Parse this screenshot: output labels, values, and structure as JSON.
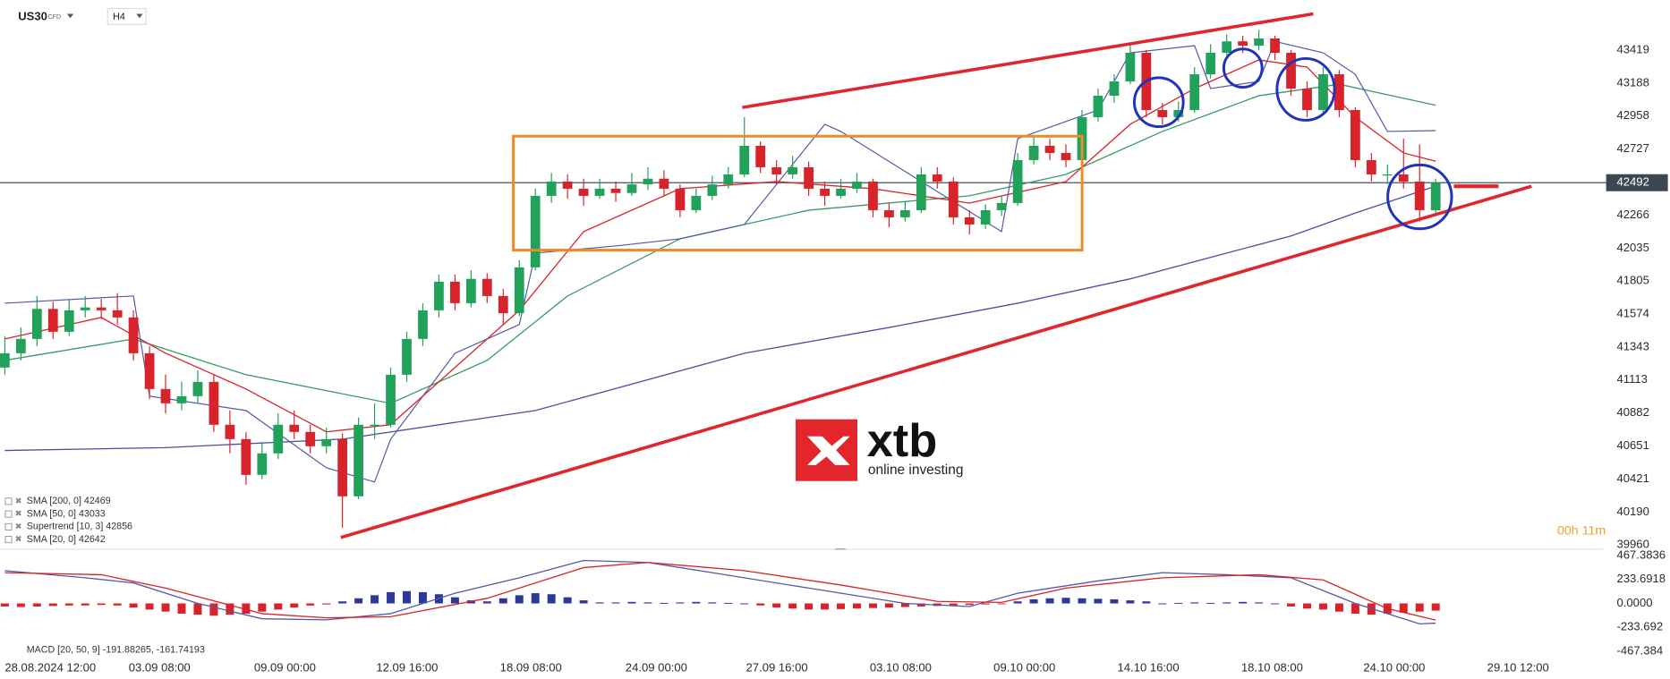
{
  "header": {
    "symbol": "US30",
    "instrument_type": "CFD",
    "timeframe": "H4"
  },
  "logo": {
    "brand": "xtb",
    "tagline": "online investing"
  },
  "chart_data": [
    {
      "type": "candlestick",
      "up_color": "#22a15a",
      "down_color": "#d8232a",
      "xlim": [
        -0.3,
        99.4
      ],
      "xticks": [
        {
          "value": 0.0,
          "label": "28.08.2024 12:00"
        },
        {
          "value": 7.7,
          "label": "03.09 08:00"
        },
        {
          "value": 15.5,
          "label": "09.09 00:00"
        },
        {
          "value": 23.1,
          "label": "12.09 16:00"
        },
        {
          "value": 30.8,
          "label": "18.09 08:00"
        },
        {
          "value": 38.6,
          "label": "24.09 00:00"
        },
        {
          "value": 46.1,
          "label": "27.09 16:00"
        },
        {
          "value": 53.8,
          "label": "03.10 08:00"
        },
        {
          "value": 61.5,
          "label": "09.10 00:00"
        },
        {
          "value": 69.2,
          "label": "14.10 16:00"
        },
        {
          "value": 76.9,
          "label": "18.10 08:00"
        },
        {
          "value": 84.5,
          "label": "24.10 00:00"
        },
        {
          "value": 92.2,
          "label": "29.10 12:00"
        }
      ],
      "ylim": [
        39938,
        43769
      ],
      "yticks": [
        43419,
        43188,
        42958,
        42727,
        42266,
        42035,
        41805,
        41574,
        41343,
        41113,
        40882,
        40651,
        40421,
        40190,
        39960
      ],
      "current_price": 42492,
      "countdown": "00h 11m",
      "candles": [
        [
          41200,
          41420,
          41150,
          41300
        ],
        [
          41300,
          41480,
          41250,
          41400
        ],
        [
          41400,
          41700,
          41350,
          41610
        ],
        [
          41610,
          41660,
          41400,
          41450
        ],
        [
          41450,
          41680,
          41420,
          41600
        ],
        [
          41600,
          41700,
          41550,
          41620
        ],
        [
          41620,
          41680,
          41540,
          41600
        ],
        [
          41600,
          41720,
          41500,
          41550
        ],
        [
          41550,
          41600,
          41250,
          41300
        ],
        [
          41300,
          41350,
          40980,
          41050
        ],
        [
          41050,
          41150,
          40880,
          40950
        ],
        [
          40950,
          41100,
          40900,
          41000
        ],
        [
          41000,
          41180,
          40950,
          41100
        ],
        [
          41100,
          41150,
          40750,
          40800
        ],
        [
          40800,
          40900,
          40600,
          40700
        ],
        [
          40700,
          40750,
          40380,
          40450
        ],
        [
          40450,
          40680,
          40420,
          40600
        ],
        [
          40600,
          40880,
          40560,
          40800
        ],
        [
          40800,
          40900,
          40700,
          40750
        ],
        [
          40750,
          40800,
          40600,
          40650
        ],
        [
          40650,
          40780,
          40600,
          40700
        ],
        [
          40700,
          40740,
          40080,
          40300
        ],
        [
          40300,
          40850,
          40280,
          40800
        ],
        [
          40800,
          40950,
          40700,
          40800
        ],
        [
          40800,
          41200,
          40780,
          41150
        ],
        [
          41150,
          41450,
          41100,
          41400
        ],
        [
          41400,
          41650,
          41350,
          41600
        ],
        [
          41600,
          41850,
          41550,
          41800
        ],
        [
          41800,
          41850,
          41600,
          41650
        ],
        [
          41650,
          41880,
          41620,
          41820
        ],
        [
          41820,
          41860,
          41650,
          41700
        ],
        [
          41700,
          41750,
          41500,
          41580
        ],
        [
          41580,
          41950,
          41560,
          41900
        ],
        [
          41900,
          42450,
          41880,
          42400
        ],
        [
          42400,
          42560,
          42350,
          42500
        ],
        [
          42500,
          42550,
          42380,
          42450
        ],
        [
          42450,
          42520,
          42330,
          42400
        ],
        [
          42400,
          42520,
          42380,
          42450
        ],
        [
          42450,
          42500,
          42360,
          42420
        ],
        [
          42420,
          42560,
          42400,
          42480
        ],
        [
          42480,
          42600,
          42440,
          42520
        ],
        [
          42520,
          42580,
          42400,
          42450
        ],
        [
          42450,
          42480,
          42250,
          42300
        ],
        [
          42300,
          42450,
          42280,
          42400
        ],
        [
          42400,
          42540,
          42370,
          42480
        ],
        [
          42480,
          42600,
          42450,
          42550
        ],
        [
          42550,
          42950,
          42530,
          42750
        ],
        [
          42750,
          42780,
          42560,
          42600
        ],
        [
          42600,
          42650,
          42480,
          42550
        ],
        [
          42550,
          42680,
          42520,
          42600
        ],
        [
          42600,
          42640,
          42400,
          42450
        ],
        [
          42450,
          42500,
          42330,
          42400
        ],
        [
          42400,
          42520,
          42380,
          42450
        ],
        [
          42450,
          42560,
          42420,
          42500
        ],
        [
          42500,
          42520,
          42250,
          42300
        ],
        [
          42300,
          42350,
          42180,
          42250
        ],
        [
          42250,
          42360,
          42220,
          42300
        ],
        [
          42300,
          42600,
          42280,
          42550
        ],
        [
          42550,
          42600,
          42450,
          42500
        ],
        [
          42500,
          42530,
          42200,
          42250
        ],
        [
          42250,
          42300,
          42130,
          42200
        ],
        [
          42200,
          42340,
          42170,
          42300
        ],
        [
          42300,
          42400,
          42260,
          42350
        ],
        [
          42350,
          42700,
          42330,
          42650
        ],
        [
          42650,
          42820,
          42620,
          42750
        ],
        [
          42750,
          42800,
          42650,
          42700
        ],
        [
          42700,
          42760,
          42600,
          42650
        ],
        [
          42650,
          43000,
          42630,
          42950
        ],
        [
          42950,
          43150,
          42920,
          43100
        ],
        [
          43100,
          43250,
          43050,
          43200
        ],
        [
          43200,
          43460,
          43180,
          43400
        ],
        [
          43400,
          43420,
          42950,
          43000
        ],
        [
          43000,
          43050,
          42900,
          42950
        ],
        [
          42950,
          43060,
          42920,
          43000
        ],
        [
          43000,
          43300,
          42980,
          43250
        ],
        [
          43250,
          43460,
          43220,
          43400
        ],
        [
          43400,
          43530,
          43380,
          43480
        ],
        [
          43480,
          43520,
          43400,
          43450
        ],
        [
          43450,
          43560,
          43420,
          43500
        ],
        [
          43500,
          43520,
          43350,
          43400
        ],
        [
          43400,
          43420,
          43100,
          43150
        ],
        [
          43150,
          43200,
          42950,
          43000
        ],
        [
          43000,
          43300,
          42980,
          43250
        ],
        [
          43250,
          43280,
          42950,
          43000
        ],
        [
          43000,
          43020,
          42600,
          42650
        ],
        [
          42650,
          42700,
          42500,
          42550
        ],
        [
          42550,
          42620,
          42480,
          42550
        ],
        [
          42550,
          42800,
          42450,
          42500
        ],
        [
          42500,
          42760,
          42220,
          42300
        ],
        [
          42300,
          42520,
          42280,
          42490
        ]
      ],
      "overlays": [
        {
          "name": "SMA [200, 0] 42469",
          "color": "#4b4f9e",
          "x": [
            0,
            10,
            21,
            33,
            46,
            55,
            63,
            70,
            76,
            80,
            84,
            89
          ],
          "values": [
            40620,
            40640,
            40700,
            40900,
            41300,
            41480,
            41650,
            41820,
            42000,
            42120,
            42280,
            42469
          ]
        },
        {
          "name": "SMA [50, 0] 43033",
          "color": "#3a9a6a",
          "x": [
            0,
            8,
            15,
            24,
            30,
            35,
            42,
            50,
            60,
            66,
            72,
            78,
            83,
            89
          ],
          "values": [
            41250,
            41400,
            41150,
            40950,
            41250,
            41700,
            42100,
            42300,
            42400,
            42550,
            42850,
            43100,
            43180,
            43033
          ]
        },
        {
          "name": "Supertrend  [10, 3] 42856",
          "color": "#5359a8",
          "x": [
            0,
            8,
            9,
            15,
            20,
            23,
            24,
            28,
            32,
            33,
            38,
            42,
            46,
            51,
            52,
            62,
            63,
            68,
            70,
            74,
            75,
            78,
            79,
            82,
            84,
            86,
            89
          ],
          "values": [
            41650,
            41700,
            41000,
            40900,
            40500,
            40400,
            40700,
            41300,
            41500,
            42000,
            42050,
            42100,
            42200,
            42900,
            42850,
            42150,
            42800,
            43000,
            43400,
            43450,
            43150,
            43200,
            43480,
            43400,
            43250,
            42850,
            42856
          ]
        },
        {
          "name": "SMA [20, 0] 42642",
          "color": "#d8232a",
          "x": [
            0,
            6,
            10,
            15,
            20,
            24,
            28,
            32,
            36,
            42,
            48,
            54,
            60,
            66,
            70,
            74,
            78,
            81,
            84,
            87,
            89
          ],
          "values": [
            41400,
            41550,
            41300,
            41050,
            40750,
            40800,
            41200,
            41600,
            42150,
            42450,
            42500,
            42450,
            42350,
            42500,
            42900,
            43150,
            43350,
            43300,
            42950,
            42700,
            42642
          ]
        }
      ]
    },
    {
      "type": "macd",
      "title": "MACD [20, 50, 9] -191.88265, -161.74193",
      "ylim": [
        -530,
        509
      ],
      "yticks": [
        467.3836,
        233.6918,
        {
          "value": 0,
          "label": "0.0000"
        },
        -233.692,
        -467.384
      ],
      "hist_up_color": "#2b3a9a",
      "hist_down_color": "#d8232a",
      "histogram": [
        -30,
        -35,
        -30,
        -25,
        -20,
        -20,
        -15,
        -20,
        -40,
        -60,
        -80,
        -100,
        -110,
        -120,
        -110,
        -100,
        -80,
        -60,
        -40,
        -20,
        -10,
        20,
        50,
        80,
        110,
        120,
        110,
        90,
        60,
        30,
        20,
        50,
        80,
        100,
        90,
        60,
        30,
        10,
        10,
        15,
        10,
        5,
        10,
        15,
        10,
        5,
        0,
        -20,
        -40,
        -50,
        -60,
        -60,
        -55,
        -50,
        -45,
        -40,
        -35,
        -30,
        -25,
        -20,
        -15,
        -10,
        -5,
        20,
        40,
        50,
        55,
        50,
        45,
        40,
        30,
        20,
        0,
        5,
        10,
        5,
        10,
        15,
        10,
        0,
        -30,
        -50,
        -60,
        -80,
        -100,
        -110,
        -100,
        -90,
        -80,
        -70
      ],
      "series": [
        {
          "color": "#5359a8",
          "x": [
            0,
            5,
            8,
            12,
            16,
            20,
            24,
            28,
            32,
            36,
            40,
            44,
            50,
            56,
            60,
            63,
            68,
            72,
            76,
            80,
            84,
            88,
            89
          ],
          "values": [
            320,
            250,
            200,
            0,
            -150,
            -160,
            -100,
            100,
            250,
            420,
            400,
            300,
            150,
            0,
            -30,
            100,
            220,
            300,
            280,
            250,
            0,
            -200,
            -191.88
          ]
        },
        {
          "color": "#d8232a",
          "x": [
            0,
            6,
            10,
            16,
            20,
            24,
            30,
            36,
            40,
            46,
            52,
            58,
            62,
            66,
            72,
            78,
            82,
            86,
            89
          ],
          "values": [
            300,
            280,
            150,
            -100,
            -140,
            -130,
            50,
            350,
            400,
            320,
            180,
            20,
            10,
            150,
            250,
            280,
            230,
            -50,
            -161.74
          ]
        }
      ]
    }
  ]
}
